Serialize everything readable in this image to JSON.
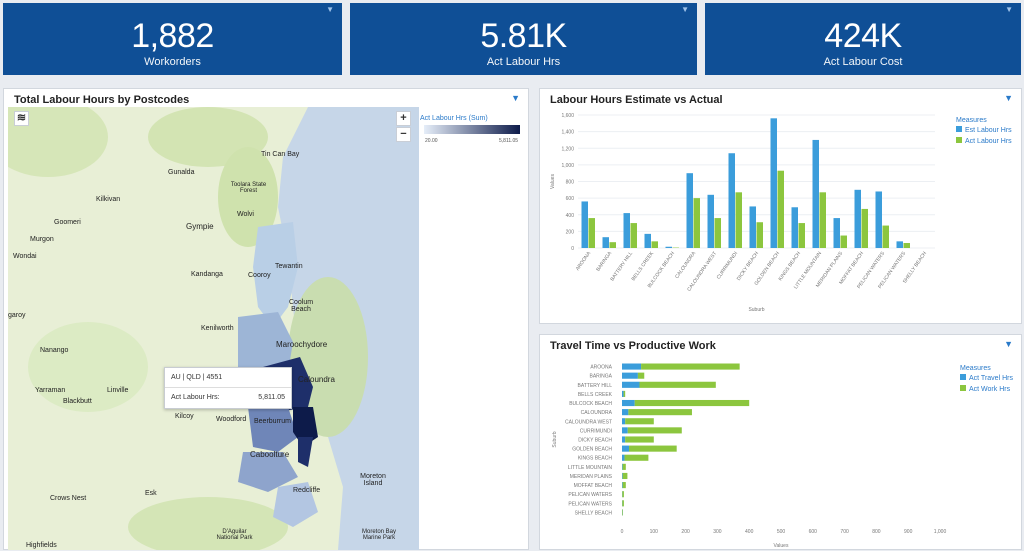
{
  "kpis": [
    {
      "value": "1,882",
      "label": "Workorders"
    },
    {
      "value": "5.81K",
      "label": "Act Labour Hrs"
    },
    {
      "value": "424K",
      "label": "Act Labour Cost"
    }
  ],
  "map_panel": {
    "title": "Total Labour Hours by Postcodes",
    "zoom_in": "+",
    "zoom_out": "−",
    "legend_title": "Act Labour Hrs (Sum)",
    "legend_min": "20.00",
    "legend_max": "5,811.05",
    "tooltip": {
      "line1": "AU | QLD | 4551",
      "label": "Act Labour Hrs:",
      "value": "5,811.05"
    },
    "places": [
      "Tin Can Bay",
      "Gunalda",
      "Toolara State Forest",
      "Kilkivan",
      "Wolvi",
      "Goomeri",
      "Gympie",
      "Murgon",
      "Wondai",
      "Tewantin",
      "Kandanga",
      "Cooroy",
      "Coolum Beach",
      "garoy",
      "Kenilworth",
      "Maroochydore",
      "Nanango",
      "Caloundra",
      "Yarraman",
      "Linville",
      "Blackbutt",
      "Kilcoy",
      "Woodford",
      "Beerburrum",
      "Caboolture",
      "Moreton Island",
      "Redcliffe",
      "Crows Nest",
      "Esk",
      "D'Aguilar National Park",
      "Moreton Bay Marine Park",
      "Highfields"
    ]
  },
  "chart1_panel": {
    "title": "Labour Hours Estimate vs Actual"
  },
  "chart2_panel": {
    "title": "Travel Time vs Productive Work"
  },
  "chart_data": [
    {
      "type": "bar",
      "title": "Labour Hours Estimate vs Actual",
      "xlabel": "Suburb",
      "ylabel": "Values",
      "ylim": [
        0,
        1600
      ],
      "yticks": [
        "0",
        "200",
        "400",
        "600",
        "800",
        "1,000",
        "1,200",
        "1,400",
        "1,600"
      ],
      "legend_title": "Measures",
      "legend_position": "top-right",
      "categories": [
        "AROONA",
        "BARINGA",
        "BATTERY HILL",
        "BELLS CREEK",
        "BULCOCK BEACH",
        "CALOUNDRA",
        "CALOUNDRA WEST",
        "CURRIMUNDI",
        "DICKY BEACH",
        "GOLDEN BEACH",
        "KINGS BEACH",
        "LITTLE MOUNTAIN",
        "MERIDAN PLAINS",
        "MOFFAT BEACH",
        "PELICAN WATERS",
        "PELICAN WATERS",
        "SHELLY BEACH"
      ],
      "series": [
        {
          "name": "Est Labour Hrs",
          "color": "#3b9ddb",
          "values": [
            560,
            130,
            420,
            170,
            15,
            900,
            640,
            1140,
            500,
            1560,
            490,
            1300,
            360,
            700,
            680,
            80,
            0
          ]
        },
        {
          "name": "Act Labour Hrs",
          "color": "#8cc63e",
          "values": [
            360,
            70,
            300,
            80,
            5,
            600,
            360,
            670,
            310,
            930,
            300,
            670,
            150,
            470,
            270,
            60,
            0
          ]
        }
      ]
    },
    {
      "type": "bar",
      "orientation": "horizontal",
      "stacked": true,
      "title": "Travel Time vs Productive Work",
      "xlabel": "Values",
      "ylabel": "Suburb",
      "xlim": [
        0,
        1000
      ],
      "xticks": [
        "0",
        "100",
        "200",
        "300",
        "400",
        "500",
        "600",
        "700",
        "800",
        "900",
        "1,000"
      ],
      "legend_title": "Measures",
      "legend_position": "top-right",
      "categories": [
        "AROONA",
        "BARINGA",
        "BATTERY HILL",
        "BELLS CREEK",
        "BULCOCK BEACH",
        "CALOUNDRA",
        "CALOUNDRA WEST",
        "CURRIMUNDI",
        "DICKY BEACH",
        "GOLDEN BEACH",
        "KINGS BEACH",
        "LITTLE MOUNTAIN",
        "MERIDAN PLAINS",
        "MOFFAT BEACH",
        "PELICAN WATERS",
        "PELICAN WATERS",
        "SHELLY BEACH"
      ],
      "series": [
        {
          "name": "Act Travel Hrs",
          "color": "#3b9ddb",
          "values": [
            60,
            50,
            55,
            5,
            40,
            20,
            10,
            18,
            10,
            22,
            8,
            2,
            2,
            2,
            1,
            1,
            1
          ]
        },
        {
          "name": "Act Work Hrs",
          "color": "#8cc63e",
          "values": [
            310,
            20,
            240,
            5,
            360,
            200,
            90,
            170,
            90,
            150,
            75,
            10,
            15,
            10,
            5,
            5,
            2
          ]
        }
      ]
    }
  ]
}
